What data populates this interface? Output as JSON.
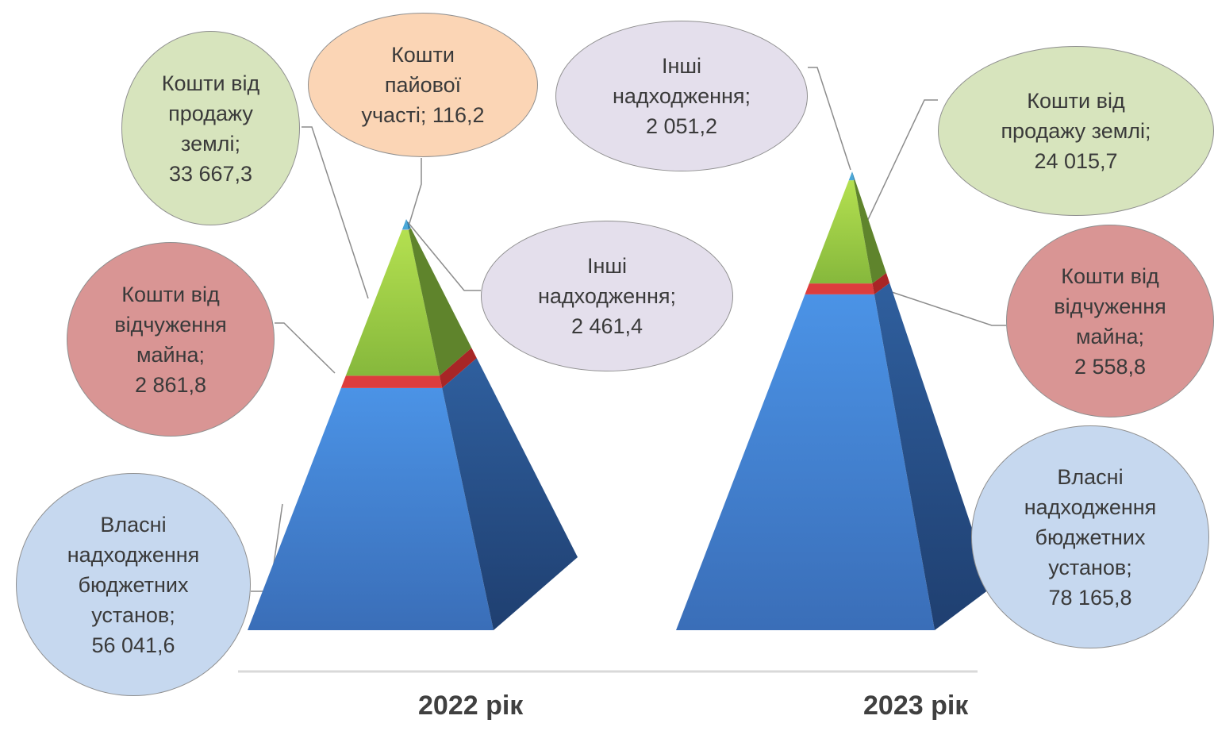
{
  "chart_data": [
    {
      "type": "pyramid",
      "category": "2022 рік",
      "segments": [
        {
          "name": "Власні надходження бюджетних установ",
          "value": 56041.6,
          "label": "Власні\nнадходження\nбюджетних\nустанов;\n56 041,6",
          "color": "#4a8fde"
        },
        {
          "name": "Кошти від відчуження майна",
          "value": 2861.8,
          "label": "Кошти від\nвідчуження\nмайна;\n2 861,8",
          "color": "#d53a3a"
        },
        {
          "name": "Кошти від продажу землі",
          "value": 33667.3,
          "label": "Кошти від\nпродажу\nземлі;\n33 667,3",
          "color": "#9fcf48"
        },
        {
          "name": "Кошти пайової участі",
          "value": 116.2,
          "label": "Кошти\nпайової\nучасті;  116,2",
          "color": "#f6c9a8"
        },
        {
          "name": "Інші надходження",
          "value": 2461.4,
          "label": "Інші\nнадходження;\n2 461,4",
          "color": "#4aa8d8"
        }
      ]
    },
    {
      "type": "pyramid",
      "category": "2023 рік",
      "segments": [
        {
          "name": "Власні надходження бюджетних установ",
          "value": 78165.8,
          "label": "Власні\nнадходження\nбюджетних\nустанов;\n78 165,8",
          "color": "#4a8fde"
        },
        {
          "name": "Кошти від відчуження майна",
          "value": 2558.8,
          "label": "Кошти від\nвідчуження\nмайна;\n2 558,8",
          "color": "#d53a3a"
        },
        {
          "name": "Кошти від продажу землі",
          "value": 24015.7,
          "label": "Кошти від\nпродажу землі;\n24 015,7",
          "color": "#9fcf48"
        },
        {
          "name": "Інші надходження",
          "value": 2051.2,
          "label": "Інші\nнадходження;\n2 051,2",
          "color": "#4aa8d8"
        }
      ]
    }
  ],
  "bubble_colors": {
    "own": "#c6d8ef",
    "property": "#d99594",
    "land": "#d7e4bd",
    "share": "#fbd5b5",
    "other": "#e4dfec"
  }
}
